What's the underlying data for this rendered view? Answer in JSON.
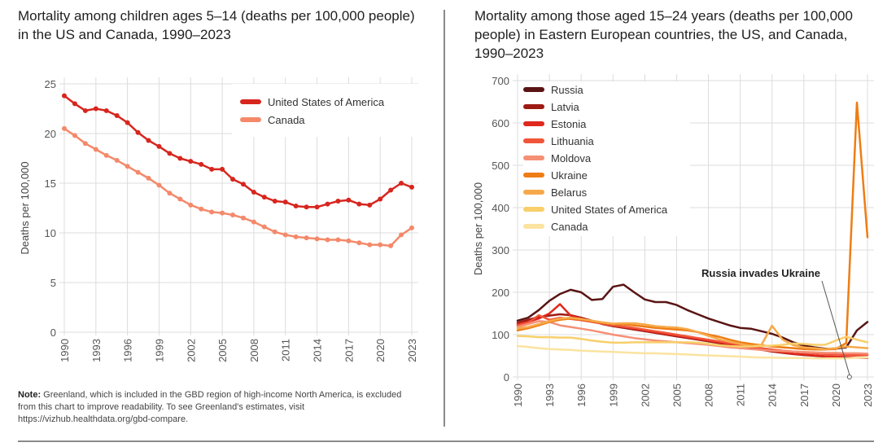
{
  "left_title": "Mortality among children ages 5–14 (deaths per 100,000 people) in the US and Canada, 1990–2023",
  "right_title": "Mortality among those aged 15–24 years (deaths per 100,000 people) in Eastern European countries, the US, and Canada, 1990–2023",
  "note": {
    "label": "Note:",
    "text": " Greenland, which is included in the GBD region of high-income North America, is excluded from this chart to improve readability. To see Greenland's estimates, visit https://vizhub.healthdata.org/gbd-compare."
  },
  "chart_data": [
    {
      "type": "line",
      "title": "Mortality among children ages 5–14 (deaths per 100,000 people) in the US and Canada, 1990–2023",
      "xlabel": "",
      "ylabel": "Deaths per 100,000",
      "ylim": [
        0,
        25
      ],
      "yticks": [
        0,
        5,
        10,
        15,
        20,
        25
      ],
      "xlim": [
        1990,
        2023
      ],
      "xticks": [
        1990,
        1993,
        1996,
        1999,
        2002,
        2005,
        2008,
        2011,
        2014,
        2017,
        2020,
        2023
      ],
      "grid": true,
      "legend": "top-right",
      "markers": true,
      "x": [
        1990,
        1991,
        1992,
        1993,
        1994,
        1995,
        1996,
        1997,
        1998,
        1999,
        2000,
        2001,
        2002,
        2003,
        2004,
        2005,
        2006,
        2007,
        2008,
        2009,
        2010,
        2011,
        2012,
        2013,
        2014,
        2015,
        2016,
        2017,
        2018,
        2019,
        2020,
        2021,
        2022,
        2023
      ],
      "series": [
        {
          "name": "United States of America",
          "color": "#d7261e",
          "values": [
            23.8,
            23.0,
            22.3,
            22.5,
            22.3,
            21.8,
            21.1,
            20.1,
            19.3,
            18.7,
            18.0,
            17.5,
            17.2,
            16.9,
            16.4,
            16.4,
            15.4,
            14.9,
            14.1,
            13.6,
            13.2,
            13.1,
            12.7,
            12.6,
            12.6,
            12.9,
            13.2,
            13.3,
            12.9,
            12.8,
            13.4,
            14.3,
            15.0,
            14.6
          ]
        },
        {
          "name": "Canada",
          "color": "#f4896a",
          "values": [
            20.5,
            19.8,
            19.0,
            18.4,
            17.8,
            17.3,
            16.7,
            16.1,
            15.5,
            14.8,
            14.0,
            13.4,
            12.8,
            12.4,
            12.1,
            12.0,
            11.8,
            11.5,
            11.1,
            10.6,
            10.1,
            9.8,
            9.6,
            9.5,
            9.4,
            9.3,
            9.3,
            9.2,
            9.0,
            8.8,
            8.8,
            8.7,
            9.8,
            10.5
          ]
        }
      ]
    },
    {
      "type": "line",
      "title": "Mortality among those aged 15–24 years (deaths per 100,000 people) in Eastern European countries, the US, and Canada, 1990–2023",
      "xlabel": "",
      "ylabel": "Deaths per 100,000",
      "ylim": [
        0,
        700
      ],
      "yticks": [
        0,
        100,
        200,
        300,
        400,
        500,
        600,
        700
      ],
      "xlim": [
        1990,
        2023
      ],
      "xticks": [
        1990,
        1993,
        1996,
        1999,
        2002,
        2005,
        2008,
        2011,
        2014,
        2017,
        2020,
        2023
      ],
      "grid": true,
      "legend": "top-left",
      "markers": false,
      "annotation": {
        "text": "Russia invades Ukraine",
        "x": 2022
      },
      "x": [
        1990,
        1991,
        1992,
        1993,
        1994,
        1995,
        1996,
        1997,
        1998,
        1999,
        2000,
        2001,
        2002,
        2003,
        2004,
        2005,
        2006,
        2007,
        2008,
        2009,
        2010,
        2011,
        2012,
        2013,
        2014,
        2015,
        2016,
        2017,
        2018,
        2019,
        2020,
        2021,
        2022,
        2023
      ],
      "series": [
        {
          "name": "Russia",
          "color": "#5a1414",
          "values": [
            133,
            140,
            158,
            180,
            196,
            206,
            200,
            182,
            184,
            213,
            218,
            200,
            183,
            177,
            177,
            170,
            158,
            148,
            138,
            130,
            122,
            116,
            114,
            108,
            102,
            93,
            82,
            74,
            70,
            67,
            67,
            70,
            110,
            130
          ]
        },
        {
          "name": "Latvia",
          "color": "#9e1a14",
          "values": [
            128,
            135,
            142,
            145,
            148,
            146,
            140,
            133,
            125,
            120,
            116,
            112,
            108,
            104,
            100,
            96,
            92,
            88,
            84,
            80,
            76,
            72,
            68,
            64,
            60,
            57,
            54,
            52,
            50,
            48,
            47,
            46,
            46,
            45
          ]
        },
        {
          "name": "Estonia",
          "color": "#e0281c",
          "values": [
            125,
            130,
            138,
            150,
            172,
            145,
            138,
            132,
            126,
            122,
            118,
            114,
            110,
            106,
            102,
            98,
            94,
            90,
            86,
            82,
            78,
            74,
            70,
            66,
            62,
            58,
            55,
            53,
            51,
            49,
            48,
            47,
            47,
            46
          ]
        },
        {
          "name": "Lithuania",
          "color": "#f0553a",
          "values": [
            122,
            128,
            146,
            135,
            140,
            137,
            134,
            130,
            126,
            122,
            119,
            116,
            112,
            108,
            104,
            100,
            96,
            92,
            88,
            84,
            80,
            76,
            72,
            68,
            65,
            62,
            60,
            58,
            56,
            54,
            53,
            52,
            52,
            52
          ]
        },
        {
          "name": "Moldova",
          "color": "#f59076",
          "values": [
            118,
            125,
            132,
            130,
            122,
            118,
            114,
            110,
            105,
            100,
            96,
            92,
            89,
            86,
            84,
            82,
            80,
            78,
            76,
            73,
            70,
            68,
            66,
            64,
            62,
            61,
            60,
            59,
            58,
            57,
            57,
            56,
            56,
            55
          ]
        },
        {
          "name": "Ukraine",
          "color": "#ee7d14",
          "values": [
            110,
            115,
            122,
            130,
            135,
            138,
            136,
            132,
            128,
            125,
            124,
            122,
            119,
            116,
            114,
            112,
            110,
            106,
            100,
            95,
            88,
            82,
            78,
            75,
            72,
            70,
            68,
            66,
            65,
            65,
            66,
            80,
            648,
            330
          ]
        },
        {
          "name": "Belarus",
          "color": "#f6a94a",
          "values": [
            115,
            118,
            125,
            132,
            138,
            140,
            137,
            133,
            129,
            126,
            127,
            127,
            124,
            120,
            118,
            117,
            113,
            106,
            97,
            89,
            83,
            78,
            73,
            76,
            121,
            88,
            75,
            70,
            68,
            66,
            68,
            72,
            70,
            68
          ]
        },
        {
          "name": "United States of America",
          "color": "#f8cf6a",
          "values": [
            97,
            96,
            94,
            94,
            93,
            93,
            90,
            86,
            83,
            81,
            81,
            82,
            82,
            82,
            82,
            82,
            82,
            81,
            78,
            75,
            73,
            72,
            72,
            73,
            74,
            76,
            79,
            78,
            76,
            76,
            86,
            95,
            88,
            82
          ]
        },
        {
          "name": "Canada",
          "color": "#fbe3a0",
          "values": [
            73,
            71,
            68,
            66,
            65,
            64,
            62,
            61,
            60,
            59,
            58,
            57,
            56,
            56,
            55,
            54,
            53,
            52,
            51,
            50,
            49,
            48,
            47,
            46,
            46,
            45,
            45,
            45,
            44,
            44,
            44,
            44,
            46,
            46
          ]
        }
      ]
    }
  ]
}
